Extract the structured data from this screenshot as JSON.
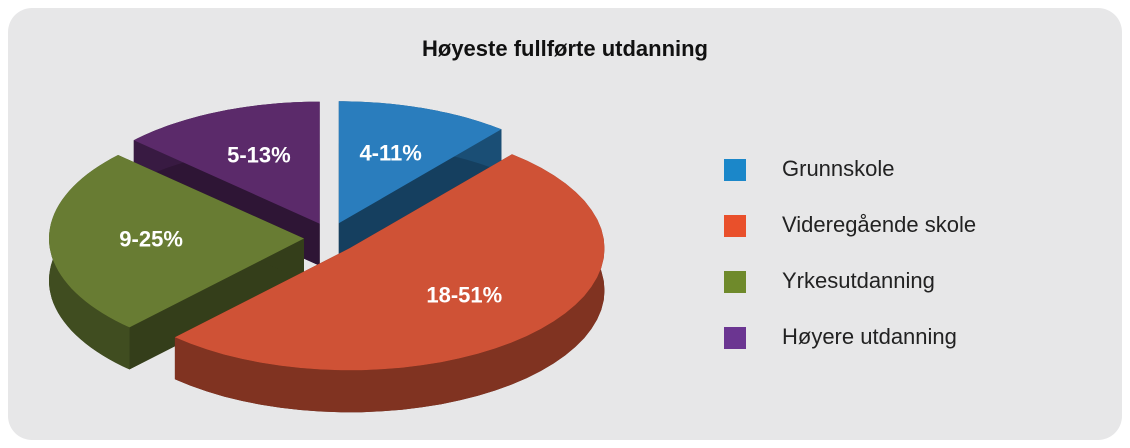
{
  "chart_data": {
    "type": "pie",
    "title": "Høyeste fullførte utdanning",
    "categories": [
      "Grunnskole",
      "Videregående skole",
      "Yrkesutdanning",
      "Høyere utdanning"
    ],
    "values": [
      11,
      51,
      25,
      13
    ],
    "value_labels": [
      "4-11%",
      "18-51%",
      "9-25%",
      "5-13%"
    ],
    "colors": [
      "#2a7dbd",
      "#cf5236",
      "#687c33",
      "#5b2a6a"
    ],
    "legend_colors": [
      "#1b87c9",
      "#e9502b",
      "#6f8a2b",
      "#6b3591"
    ],
    "legend": "right"
  }
}
